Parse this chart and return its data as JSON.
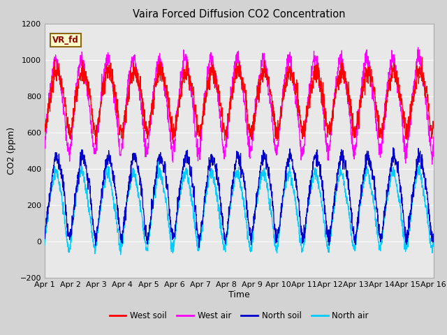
{
  "title": "Vaira Forced Diffusion CO2 Concentration",
  "xlabel": "Time",
  "ylabel": "CO2 (ppm)",
  "ylim": [
    -200,
    1200
  ],
  "yticks": [
    -200,
    0,
    200,
    400,
    600,
    800,
    1000,
    1200
  ],
  "xlim": [
    0,
    15
  ],
  "xtick_labels": [
    "Apr 1",
    "Apr 2",
    "Apr 3",
    "Apr 4",
    "Apr 5",
    "Apr 6",
    "Apr 7",
    "Apr 8",
    "Apr 9",
    "Apr 10",
    "Apr 11",
    "Apr 12",
    "Apr 13",
    "Apr 14",
    "Apr 15",
    "Apr 16"
  ],
  "legend_label": "VR_fd",
  "series_colors": {
    "west_soil": "#ff0000",
    "west_air": "#ff00ff",
    "north_soil": "#0000cc",
    "north_air": "#00ccff"
  },
  "background_color": "#d3d3d3",
  "plot_bg_color": "#e8e8e8",
  "west_soil_base": 790,
  "west_soil_amp": 160,
  "west_air_base": 775,
  "west_air_amp": 240,
  "north_soil_base": 270,
  "north_soil_amp": 210,
  "north_air_base": 195,
  "north_air_amp": 195,
  "n_points": 2000,
  "n_days": 15
}
